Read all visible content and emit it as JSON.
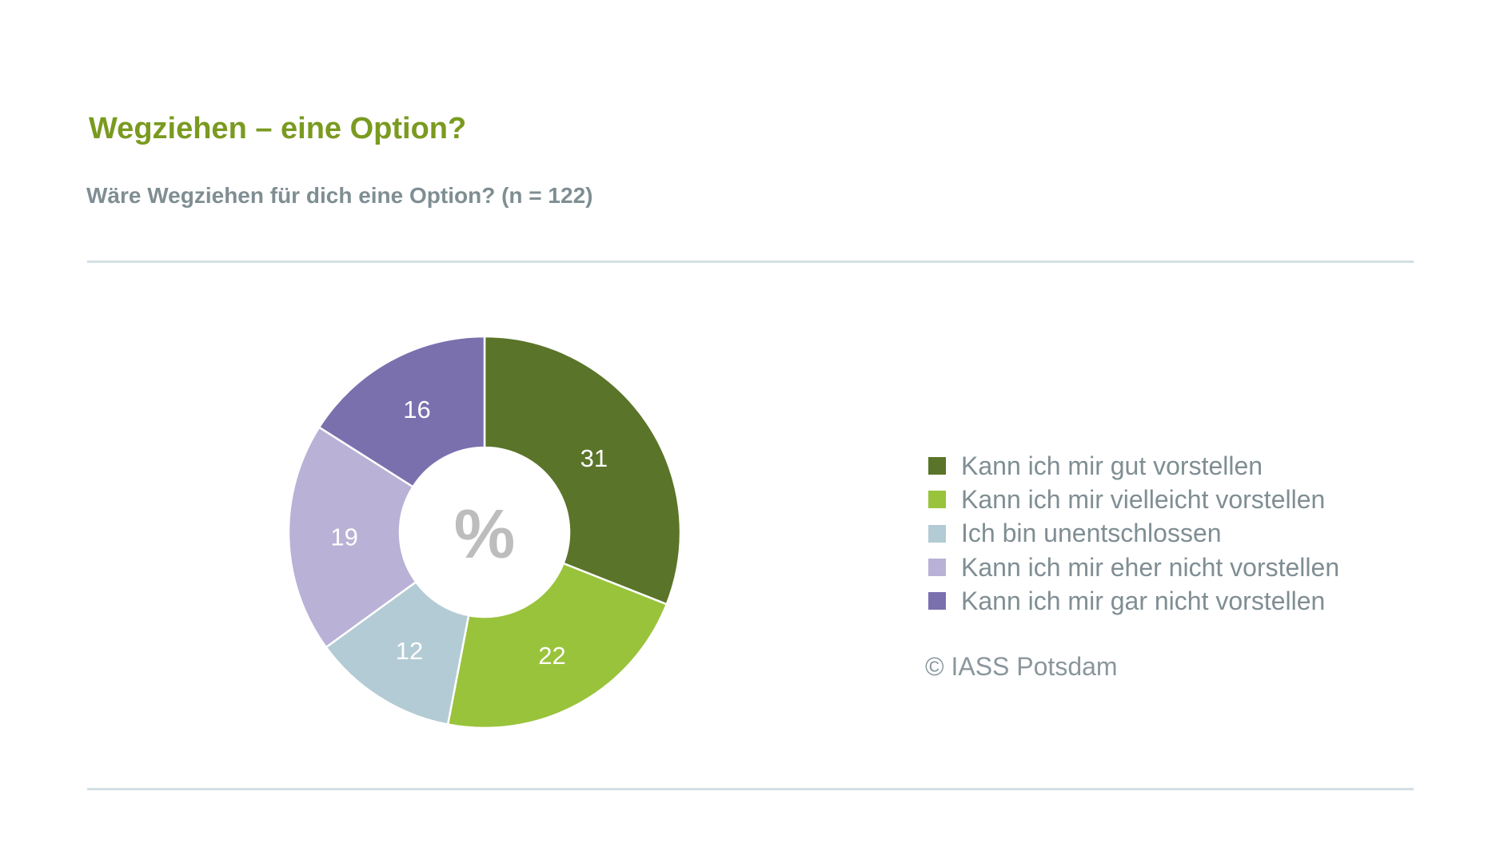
{
  "title": "Wegziehen – eine Option?",
  "subtitle": "Wäre Wegziehen für dich eine Option? (n = 122)",
  "copyright": "© IASS Potsdam",
  "chart_data": {
    "type": "pie",
    "variant": "donut",
    "center_label": "%",
    "unit": "%",
    "categories": [
      "Kann ich mir gut vorstellen",
      "Kann ich mir vielleicht vorstellen",
      "Ich bin unentschlossen",
      "Kann ich mir eher nicht vorstellen",
      "Kann ich mir gar nicht vorstellen"
    ],
    "values": [
      31,
      22,
      12,
      19,
      16
    ],
    "colors": [
      "#5a7429",
      "#99c33b",
      "#b3cbd4",
      "#b9b1d6",
      "#7a70ae"
    ],
    "legend_position": "right"
  }
}
